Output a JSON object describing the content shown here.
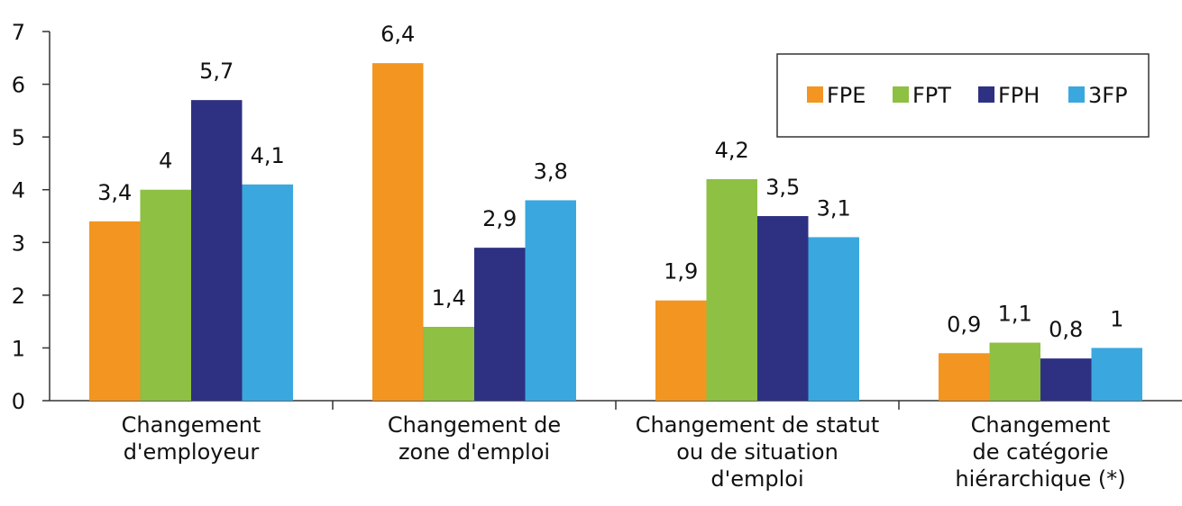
{
  "chart_data": {
    "type": "bar",
    "categories": [
      "Changement\nd'employeur",
      "Changement de\nzone d'emploi",
      "Changement de statut\nou de situation\nd'emploi",
      "Changement\nde catégorie\nhiérarchique (*)"
    ],
    "series": [
      {
        "name": "FPE",
        "color": "#f39521",
        "values": [
          3.4,
          6.4,
          1.9,
          0.9
        ],
        "value_labels": [
          "3,4",
          "6,4",
          "1,9",
          "0,9"
        ]
      },
      {
        "name": "FPT",
        "color": "#8dc043",
        "values": [
          4,
          1.4,
          4.2,
          1.1
        ],
        "value_labels": [
          "4",
          "1,4",
          "4,2",
          "1,1"
        ]
      },
      {
        "name": "FPH",
        "color": "#2e3182",
        "values": [
          5.7,
          2.9,
          3.5,
          0.8
        ],
        "value_labels": [
          "5,7",
          "2,9",
          "3,5",
          "0,8"
        ]
      },
      {
        "name": "3FP",
        "color": "#3aa8df",
        "values": [
          4.1,
          3.8,
          3.1,
          1
        ],
        "value_labels": [
          "4,1",
          "3,8",
          "3,1",
          "1"
        ]
      }
    ],
    "ylim": [
      0,
      7
    ],
    "yticks": [
      0,
      1,
      2,
      3,
      4,
      5,
      6,
      7
    ],
    "grid": false,
    "legend": "upper right"
  }
}
